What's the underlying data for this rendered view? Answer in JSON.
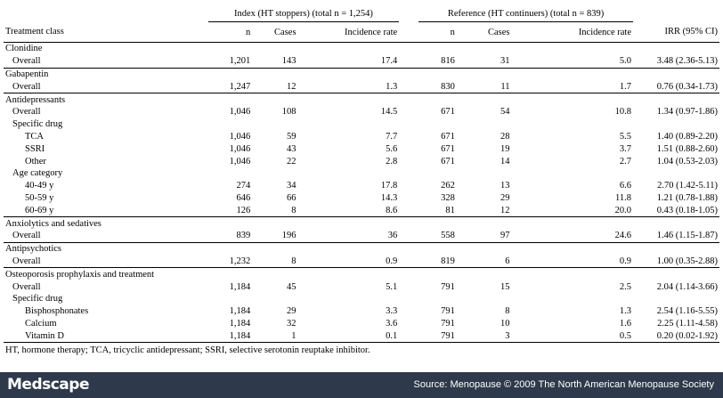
{
  "header": {
    "group_index": "Index (HT stoppers) (total n = 1,254)",
    "group_reference": "Reference (HT continuers) (total n = 839)",
    "col_class": "Treatment class",
    "col_n": "n",
    "col_cases": "Cases",
    "col_rate": "Incidence rate",
    "col_n2": "n",
    "col_cases2": "Cases",
    "col_rate2": "Incidence rate",
    "col_irr": "IRR (95% CI)"
  },
  "rows": [
    {
      "label": "Clonidine",
      "level": 0
    },
    {
      "label": "Overall",
      "level": 1,
      "n1": "1,201",
      "c1": "143",
      "r1": "17.4",
      "n2": "816",
      "c2": "31",
      "r2": "5.0",
      "irr": "3.48 (2.36-5.13)"
    },
    {
      "label": "Gabapentin",
      "level": 0
    },
    {
      "label": "Overall",
      "level": 1,
      "n1": "1,247",
      "c1": "12",
      "r1": "1.3",
      "n2": "830",
      "c2": "11",
      "r2": "1.7",
      "irr": "0.76 (0.34-1.73)"
    },
    {
      "label": "Antidepressants",
      "level": 0
    },
    {
      "label": "Overall",
      "level": 1,
      "n1": "1,046",
      "c1": "108",
      "r1": "14.5",
      "n2": "671",
      "c2": "54",
      "r2": "10.8",
      "irr": "1.34 (0.97-1.86)"
    },
    {
      "label": "Specific drug",
      "level": 1
    },
    {
      "label": "TCA",
      "level": 2,
      "n1": "1,046",
      "c1": "59",
      "r1": "7.7",
      "n2": "671",
      "c2": "28",
      "r2": "5.5",
      "irr": "1.40 (0.89-2.20)"
    },
    {
      "label": "SSRI",
      "level": 2,
      "n1": "1,046",
      "c1": "43",
      "r1": "5.6",
      "n2": "671",
      "c2": "19",
      "r2": "3.7",
      "irr": "1.51 (0.88-2.60)"
    },
    {
      "label": "Other",
      "level": 2,
      "n1": "1,046",
      "c1": "22",
      "r1": "2.8",
      "n2": "671",
      "c2": "14",
      "r2": "2.7",
      "irr": "1.04 (0.53-2.03)"
    },
    {
      "label": "Age category",
      "level": 1
    },
    {
      "label": "40-49 y",
      "level": 2,
      "n1": "274",
      "c1": "34",
      "r1": "17.8",
      "n2": "262",
      "c2": "13",
      "r2": "6.6",
      "irr": "2.70 (1.42-5.11)"
    },
    {
      "label": "50-59 y",
      "level": 2,
      "n1": "646",
      "c1": "66",
      "r1": "14.3",
      "n2": "328",
      "c2": "29",
      "r2": "11.8",
      "irr": "1.21 (0.78-1.88)"
    },
    {
      "label": "60-69 y",
      "level": 2,
      "n1": "126",
      "c1": "8",
      "r1": "8.6",
      "n2": "81",
      "c2": "12",
      "r2": "20.0",
      "irr": "0.43 (0.18-1.05)"
    },
    {
      "label": "Anxiolytics and sedatives",
      "level": 0
    },
    {
      "label": "Overall",
      "level": 1,
      "n1": "839",
      "c1": "196",
      "r1": "36",
      "n2": "558",
      "c2": "97",
      "r2": "24.6",
      "irr": "1.46 (1.15-1.87)"
    },
    {
      "label": "Antipsychotics",
      "level": 0
    },
    {
      "label": "Overall",
      "level": 1,
      "n1": "1,232",
      "c1": "8",
      "r1": "0.9",
      "n2": "819",
      "c2": "6",
      "r2": "0.9",
      "irr": "1.00 (0.35-2.88)"
    },
    {
      "label": "Osteoporosis prophylaxis and treatment",
      "level": 0
    },
    {
      "label": "Overall",
      "level": 1,
      "n1": "1,184",
      "c1": "45",
      "r1": "5.1",
      "n2": "791",
      "c2": "15",
      "r2": "2.5",
      "irr": "2.04 (1.14-3.66)"
    },
    {
      "label": "Specific drug",
      "level": 1
    },
    {
      "label": "Bisphosphonates",
      "level": 2,
      "n1": "1,184",
      "c1": "29",
      "r1": "3.3",
      "n2": "791",
      "c2": "8",
      "r2": "1.3",
      "irr": "2.54 (1.16-5.55)"
    },
    {
      "label": "Calcium",
      "level": 2,
      "n1": "1,184",
      "c1": "32",
      "r1": "3.6",
      "n2": "791",
      "c2": "10",
      "r2": "1.6",
      "irr": "2.25 (1.11-4.58)"
    },
    {
      "label": "Vitamin D",
      "level": 2,
      "n1": "1,184",
      "c1": "1",
      "r1": "0.1",
      "n2": "791",
      "c2": "3",
      "r2": "0.5",
      "irr": "0.20 (0.02-1.92)"
    }
  ],
  "footnote": "HT, hormone therapy; TCA, tricyclic antidepressant; SSRI, selective serotonin reuptake inhibitor.",
  "footer": {
    "logo": "Medscape",
    "source": "Source: Menopause © 2009 The North American Menopause Society",
    "background_color": "#2e3a4b"
  }
}
